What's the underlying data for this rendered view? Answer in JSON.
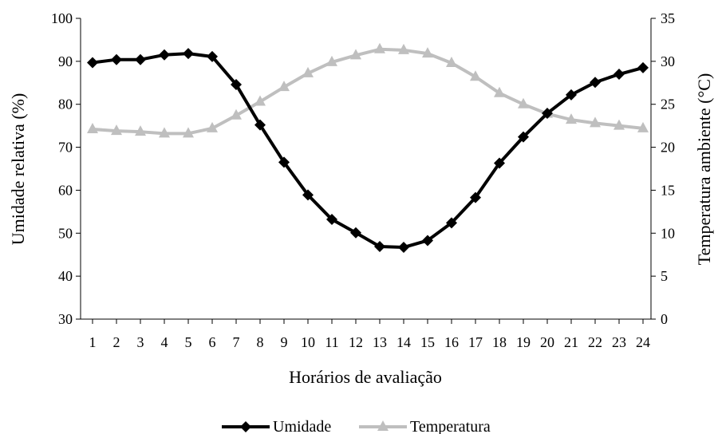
{
  "chart_data": {
    "type": "line",
    "x": [
      1,
      2,
      3,
      4,
      5,
      6,
      7,
      8,
      9,
      10,
      11,
      12,
      13,
      14,
      15,
      16,
      17,
      18,
      19,
      20,
      21,
      22,
      23,
      24
    ],
    "xlabel": "Horários de avaliação",
    "ylabel_left": "Umidade relativa (%)",
    "ylabel_right": "Temperatura ambiente (°C)",
    "ylim_left": [
      30,
      100
    ],
    "ylim_right": [
      0,
      35
    ],
    "yticks_left": [
      30,
      40,
      50,
      60,
      70,
      80,
      90,
      100
    ],
    "yticks_right": [
      0,
      5,
      10,
      15,
      20,
      25,
      30,
      35
    ],
    "grid": false,
    "legend_position": "bottom",
    "series": [
      {
        "name": "Umidade",
        "axis": "left",
        "color": "#000000",
        "marker": "diamond",
        "values": [
          89.7,
          90.4,
          90.4,
          91.5,
          91.8,
          91.1,
          84.6,
          75.2,
          66.5,
          58.9,
          53.2,
          50.1,
          46.9,
          46.7,
          48.3,
          52.4,
          58.3,
          66.3,
          72.4,
          77.9,
          82.2,
          85.1,
          87.0,
          88.5
        ]
      },
      {
        "name": "Temperatura",
        "axis": "right",
        "color": "#bfbfbf",
        "marker": "triangle",
        "values": [
          22.1,
          21.9,
          21.8,
          21.6,
          21.6,
          22.2,
          23.7,
          25.3,
          27.0,
          28.6,
          29.9,
          30.7,
          31.4,
          31.3,
          30.9,
          29.8,
          28.2,
          26.3,
          25.0,
          23.9,
          23.2,
          22.8,
          22.5,
          22.2
        ]
      }
    ]
  }
}
